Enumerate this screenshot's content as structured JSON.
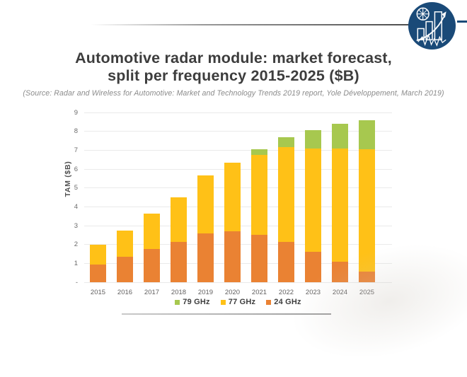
{
  "header": {
    "title_line1": "Automotive radar module: market forecast,",
    "title_line2": "split per frequency 2015-2025 ($B)",
    "source": "(Source: Radar and Wireless for Automotive: Market and Technology Trends 2019 report, Yole Développement, March 2019)"
  },
  "logo": {
    "icon": "yole-developpement-logo",
    "background": "#1A4A78"
  },
  "chart_data": {
    "type": "bar",
    "stacked": true,
    "title": "Automotive radar module: market forecast, split per frequency 2015-2025 ($B)",
    "categories": [
      "2015",
      "2016",
      "2017",
      "2018",
      "2019",
      "2020",
      "2021",
      "2022",
      "2023",
      "2024",
      "2025"
    ],
    "series": [
      {
        "name": "24 GHz",
        "color": "#EA8233",
        "values": [
          0.95,
          1.35,
          1.75,
          2.15,
          2.6,
          2.7,
          2.5,
          2.15,
          1.6,
          1.1,
          0.55
        ]
      },
      {
        "name": "77 GHz",
        "color": "#FFC117",
        "values": [
          1.05,
          1.4,
          1.9,
          2.35,
          3.05,
          3.65,
          4.25,
          5.0,
          5.5,
          6.0,
          6.5
        ]
      },
      {
        "name": "79 GHz",
        "color": "#A7C84F",
        "values": [
          0,
          0,
          0,
          0,
          0,
          0,
          0.3,
          0.55,
          0.95,
          1.3,
          1.55
        ]
      }
    ],
    "totals": [
      2.0,
      2.75,
      3.65,
      4.5,
      5.65,
      6.35,
      7.05,
      7.7,
      8.05,
      8.4,
      8.6
    ],
    "ylabel": "TAM ($B)",
    "xlabel": "",
    "ylim": [
      0,
      9
    ],
    "yticks": [
      "-",
      "1",
      "2",
      "3",
      "4",
      "5",
      "6",
      "7",
      "8",
      "9"
    ],
    "grid": true,
    "legend_position": "bottom",
    "legend_order": [
      "79 GHz",
      "77 GHz",
      "24 GHz"
    ]
  },
  "colors": {
    "logo_navy": "#1A4A78",
    "title_text": "#3D3D3D",
    "source_text": "#8B8B8B",
    "axis_text": "#666666",
    "gridline": "#EAEAEA"
  }
}
